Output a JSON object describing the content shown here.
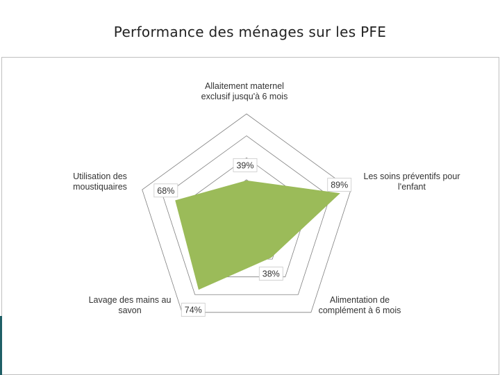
{
  "title": "Performance des ménages sur les PFE",
  "chart_data": {
    "type": "radar",
    "categories": [
      "Allaitement  maternel\nexclusif jusqu'à 6 mois",
      "Les  soins préventifs pour\nl'enfant",
      "Alimentation de\ncomplément à 6 mois",
      "Lavage  des mains au\nsavon",
      "Utilisation des\nmoustiquaires"
    ],
    "values": [
      39,
      89,
      38,
      74,
      68
    ],
    "value_labels": [
      "39%",
      "89%",
      "38%",
      "74%",
      "68%"
    ],
    "rlim": [
      0,
      100
    ],
    "grid_rings": 5,
    "fill_color": "#9bbb59",
    "grid_color": "#7f7f7f"
  }
}
